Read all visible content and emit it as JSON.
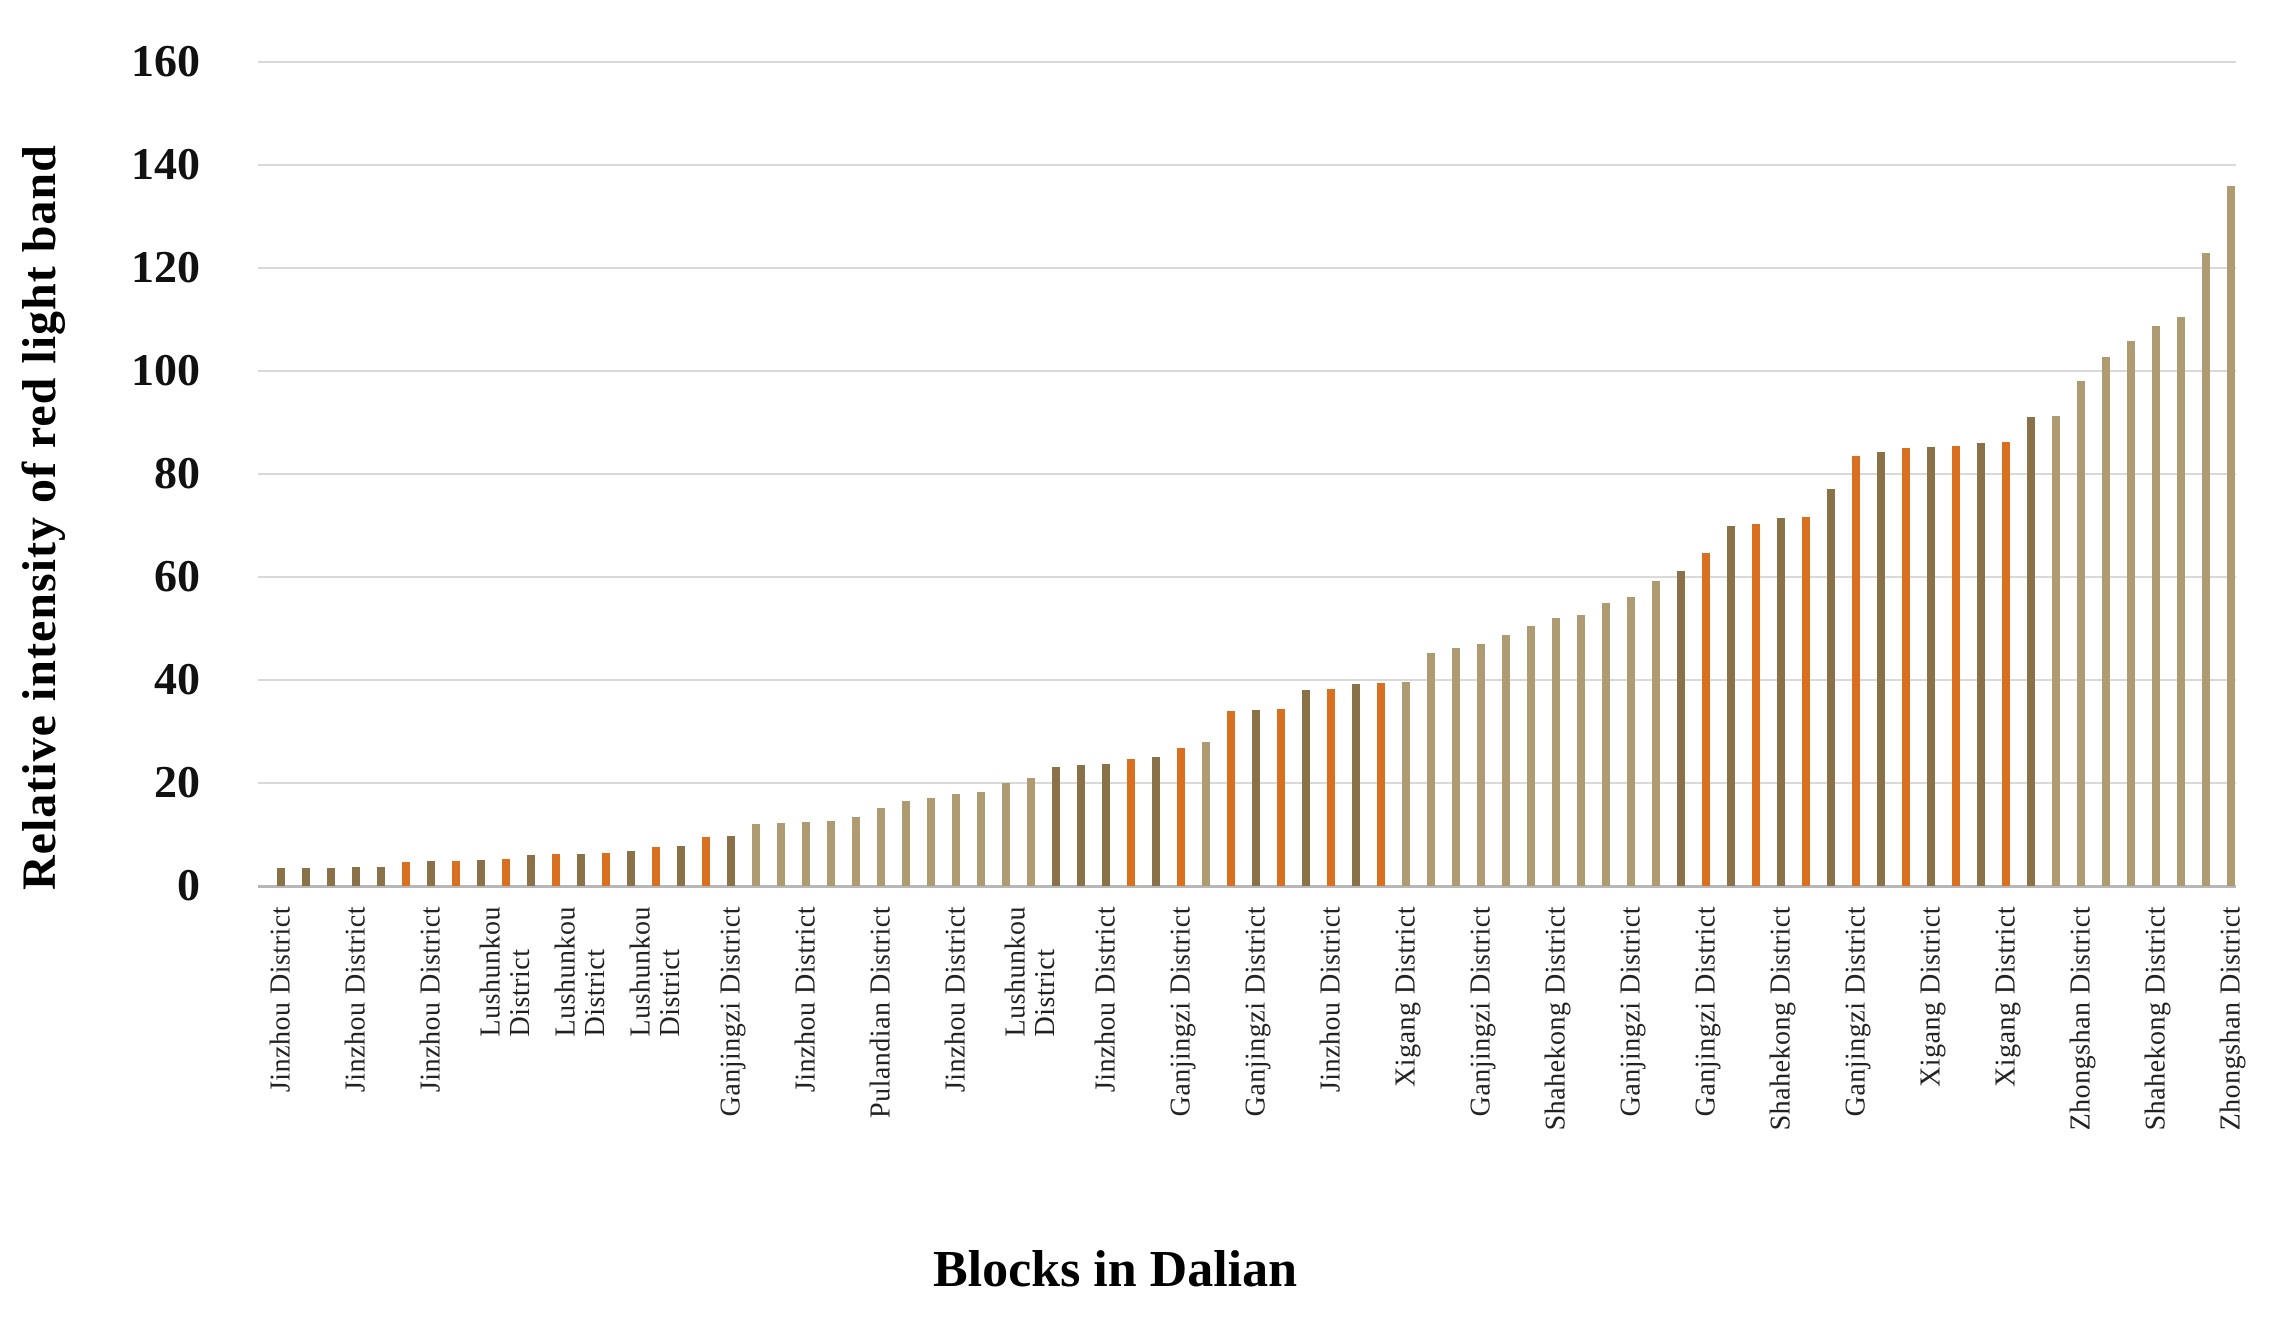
{
  "chart_data": {
    "type": "bar",
    "title": "",
    "xlabel": "Blocks in Dalian",
    "ylabel": "Relative intensity of red light band",
    "ylim": [
      0,
      160
    ],
    "ytick_interval": 20,
    "yticks": [
      0,
      20,
      40,
      60,
      80,
      100,
      120,
      140,
      160
    ],
    "grid": true,
    "legend": "none",
    "x_label_interval": 3,
    "colors": {
      "orange": "#d9701f",
      "brown": "#8a7148",
      "tan": "#ae9b72",
      "grid": "#d9d9d9",
      "axis": "#b7b7b7"
    },
    "bars": [
      {
        "value": 3.4,
        "color": "brown",
        "label": "Jinzhou District"
      },
      {
        "value": 3.5,
        "color": "brown",
        "label": ""
      },
      {
        "value": 3.5,
        "color": "brown",
        "label": ""
      },
      {
        "value": 3.6,
        "color": "brown",
        "label": "Jinzhou District"
      },
      {
        "value": 3.7,
        "color": "brown",
        "label": ""
      },
      {
        "value": 4.7,
        "color": "orange",
        "label": ""
      },
      {
        "value": 4.8,
        "color": "brown",
        "label": "Jinzhou District"
      },
      {
        "value": 4.9,
        "color": "orange",
        "label": ""
      },
      {
        "value": 5.0,
        "color": "brown",
        "label": ""
      },
      {
        "value": 5.2,
        "color": "orange",
        "label": "Lushunkou\nDistrict"
      },
      {
        "value": 6.1,
        "color": "brown",
        "label": ""
      },
      {
        "value": 6.2,
        "color": "orange",
        "label": ""
      },
      {
        "value": 6.3,
        "color": "brown",
        "label": "Lushunkou\nDistrict"
      },
      {
        "value": 6.5,
        "color": "orange",
        "label": ""
      },
      {
        "value": 6.8,
        "color": "brown",
        "label": ""
      },
      {
        "value": 7.6,
        "color": "orange",
        "label": "Lushunkou\nDistrict"
      },
      {
        "value": 7.8,
        "color": "brown",
        "label": ""
      },
      {
        "value": 9.5,
        "color": "orange",
        "label": ""
      },
      {
        "value": 9.8,
        "color": "brown",
        "label": "Ganjingzi District"
      },
      {
        "value": 12.0,
        "color": "tan",
        "label": ""
      },
      {
        "value": 12.2,
        "color": "tan",
        "label": ""
      },
      {
        "value": 12.4,
        "color": "tan",
        "label": "Jinzhou District"
      },
      {
        "value": 12.6,
        "color": "tan",
        "label": ""
      },
      {
        "value": 13.4,
        "color": "tan",
        "label": ""
      },
      {
        "value": 15.2,
        "color": "tan",
        "label": "Pulandian District"
      },
      {
        "value": 16.5,
        "color": "tan",
        "label": ""
      },
      {
        "value": 17.0,
        "color": "tan",
        "label": ""
      },
      {
        "value": 17.8,
        "color": "tan",
        "label": "Jinzhou District"
      },
      {
        "value": 18.3,
        "color": "tan",
        "label": ""
      },
      {
        "value": 20.0,
        "color": "tan",
        "label": ""
      },
      {
        "value": 21.0,
        "color": "tan",
        "label": "Lushunkou\nDistrict"
      },
      {
        "value": 23.2,
        "color": "brown",
        "label": ""
      },
      {
        "value": 23.4,
        "color": "brown",
        "label": ""
      },
      {
        "value": 23.7,
        "color": "brown",
        "label": "Jinzhou District"
      },
      {
        "value": 24.7,
        "color": "orange",
        "label": ""
      },
      {
        "value": 25.1,
        "color": "brown",
        "label": ""
      },
      {
        "value": 26.8,
        "color": "orange",
        "label": "Ganjingzi District"
      },
      {
        "value": 28.0,
        "color": "tan",
        "label": ""
      },
      {
        "value": 34.0,
        "color": "orange",
        "label": ""
      },
      {
        "value": 34.2,
        "color": "brown",
        "label": "Ganjingzi District"
      },
      {
        "value": 34.4,
        "color": "orange",
        "label": ""
      },
      {
        "value": 38.0,
        "color": "brown",
        "label": ""
      },
      {
        "value": 38.2,
        "color": "orange",
        "label": "Jinzhou District"
      },
      {
        "value": 39.2,
        "color": "brown",
        "label": ""
      },
      {
        "value": 39.4,
        "color": "orange",
        "label": ""
      },
      {
        "value": 39.6,
        "color": "tan",
        "label": "Xigang District"
      },
      {
        "value": 45.3,
        "color": "tan",
        "label": ""
      },
      {
        "value": 46.2,
        "color": "tan",
        "label": ""
      },
      {
        "value": 47.0,
        "color": "tan",
        "label": "Ganjingzi District"
      },
      {
        "value": 48.8,
        "color": "tan",
        "label": ""
      },
      {
        "value": 50.5,
        "color": "tan",
        "label": ""
      },
      {
        "value": 52.1,
        "color": "tan",
        "label": "Shahekong District"
      },
      {
        "value": 52.6,
        "color": "tan",
        "label": ""
      },
      {
        "value": 55.0,
        "color": "tan",
        "label": ""
      },
      {
        "value": 56.1,
        "color": "tan",
        "label": "Ganjingzi District"
      },
      {
        "value": 59.2,
        "color": "tan",
        "label": ""
      },
      {
        "value": 61.2,
        "color": "brown",
        "label": ""
      },
      {
        "value": 64.7,
        "color": "orange",
        "label": "Ganjingzi District"
      },
      {
        "value": 69.9,
        "color": "brown",
        "label": ""
      },
      {
        "value": 70.3,
        "color": "orange",
        "label": ""
      },
      {
        "value": 71.4,
        "color": "brown",
        "label": "Shahekong District"
      },
      {
        "value": 71.6,
        "color": "orange",
        "label": ""
      },
      {
        "value": 77.1,
        "color": "brown",
        "label": ""
      },
      {
        "value": 83.5,
        "color": "orange",
        "label": "Ganjingzi District"
      },
      {
        "value": 84.3,
        "color": "brown",
        "label": ""
      },
      {
        "value": 85.0,
        "color": "orange",
        "label": ""
      },
      {
        "value": 85.2,
        "color": "brown",
        "label": "Xigang District"
      },
      {
        "value": 85.4,
        "color": "orange",
        "label": ""
      },
      {
        "value": 86.0,
        "color": "brown",
        "label": ""
      },
      {
        "value": 86.3,
        "color": "orange",
        "label": "Xigang District"
      },
      {
        "value": 91.0,
        "color": "brown",
        "label": ""
      },
      {
        "value": 91.2,
        "color": "tan",
        "label": ""
      },
      {
        "value": 98.0,
        "color": "tan",
        "label": "Zhongshan District"
      },
      {
        "value": 102.7,
        "color": "tan",
        "label": ""
      },
      {
        "value": 105.9,
        "color": "tan",
        "label": ""
      },
      {
        "value": 108.8,
        "color": "tan",
        "label": "Shahekong District"
      },
      {
        "value": 110.4,
        "color": "tan",
        "label": ""
      },
      {
        "value": 123.0,
        "color": "tan",
        "label": ""
      },
      {
        "value": 136.0,
        "color": "tan",
        "label": "Zhongshan District"
      }
    ]
  }
}
